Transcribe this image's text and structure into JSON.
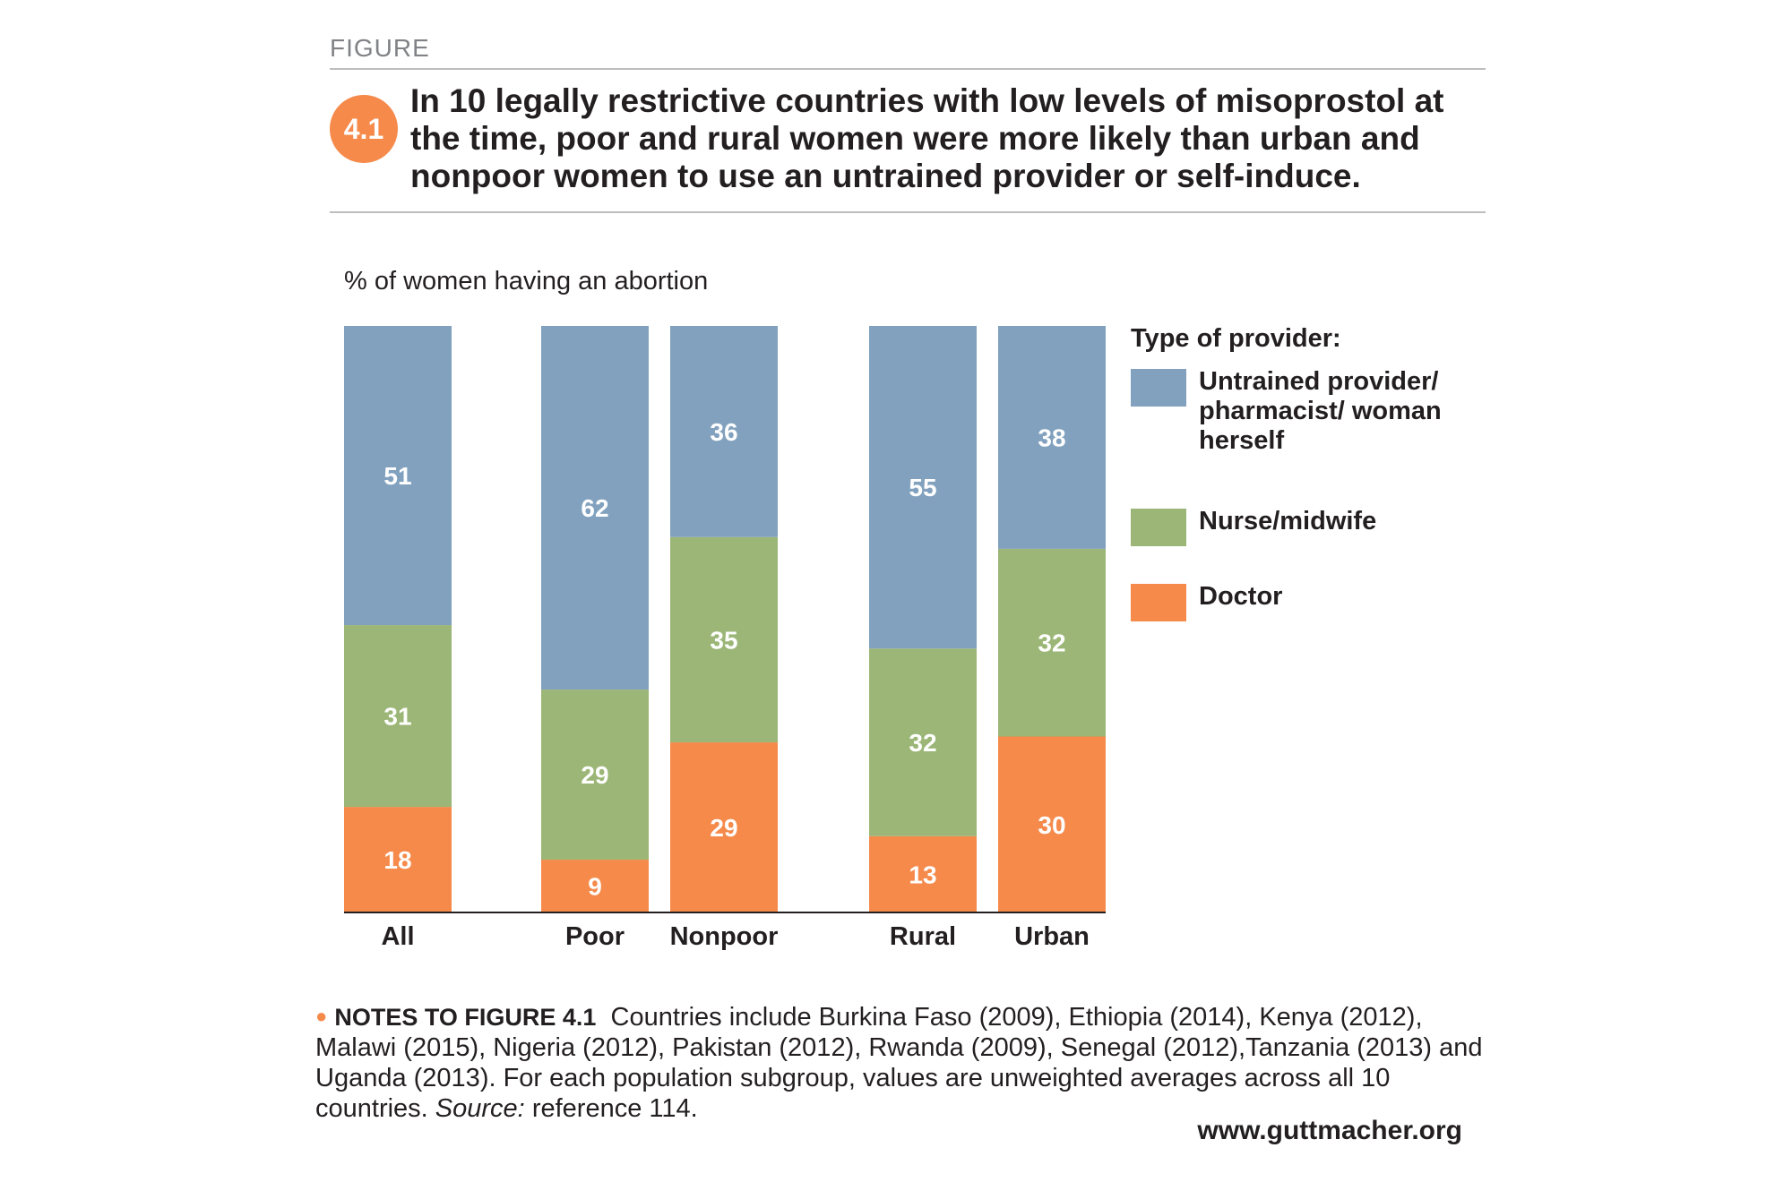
{
  "header": {
    "kicker": "FIGURE",
    "number": "4.1",
    "title": "In 10 legally restrictive countries with low levels of misoprostol at the time, poor and rural women were more likely than urban and nonpoor women to use an untrained provider or self-induce."
  },
  "chart_data": {
    "type": "bar",
    "stacked": true,
    "ylabel": "% of women having an abortion",
    "categories": [
      "All",
      "Poor",
      "Nonpoor",
      "Rural",
      "Urban"
    ],
    "series": [
      {
        "name": "Doctor",
        "color": "#f58a4b",
        "values": [
          18,
          9,
          29,
          13,
          30
        ]
      },
      {
        "name": "Nurse/midwife",
        "color": "#9bb676",
        "values": [
          31,
          29,
          35,
          32,
          32
        ]
      },
      {
        "name": "Untrained provider/ pharmacist/ woman herself",
        "color": "#81a1be",
        "values": [
          51,
          62,
          36,
          55,
          38
        ]
      }
    ],
    "ylim": [
      0,
      100
    ],
    "grid": false,
    "legend_title": "Type of provider:",
    "legend_position": "right"
  },
  "notes": {
    "heading": "NOTES TO FIGURE 4.1",
    "text": "Countries include Burkina Faso (2009), Ethiopia (2014), Kenya (2012), Malawi (2015), Nigeria (2012), Pakistan (2012), Rwanda (2009), Senegal (2012),Tanzania (2013) and Uganda (2013). For each population subgroup, values are unweighted averages across all 10 countries.",
    "source_label": "Source:",
    "source_text": "reference 114."
  },
  "footer": {
    "website": "www.guttmacher.org"
  }
}
